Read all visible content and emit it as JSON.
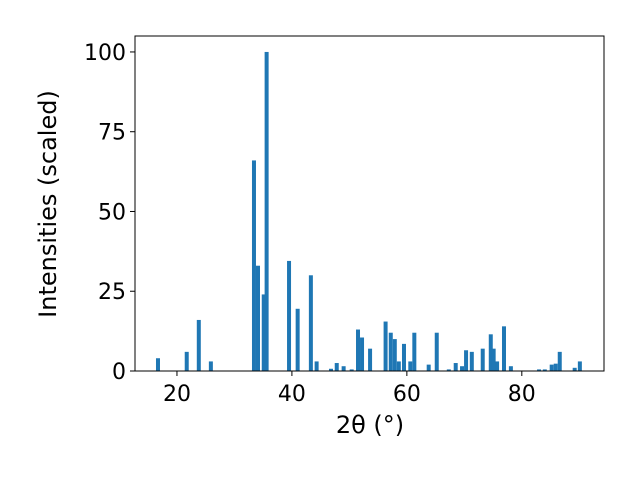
{
  "chart_data": {
    "type": "bar",
    "xlabel": "2θ (°)",
    "ylabel": "Intensities (scaled)",
    "color": "#1f77b4",
    "x": [
      16.7,
      21.7,
      23.8,
      25.9,
      33.4,
      34.1,
      35.1,
      35.6,
      39.5,
      41.0,
      43.3,
      44.3,
      46.8,
      47.8,
      49.0,
      50.4,
      51.5,
      52.2,
      53.6,
      56.3,
      57.2,
      57.9,
      58.6,
      59.5,
      60.6,
      61.3,
      63.8,
      65.2,
      67.3,
      68.5,
      69.6,
      70.3,
      71.3,
      73.2,
      74.6,
      75.1,
      75.7,
      76.9,
      78.1,
      83.0,
      84.0,
      85.2,
      85.9,
      86.6,
      89.2,
      90.1
    ],
    "values": [
      4,
      6,
      16,
      3,
      66,
      33,
      24,
      100,
      34.5,
      19.5,
      30,
      3,
      0.7,
      2.5,
      1.5,
      0.5,
      13,
      10.5,
      7,
      15.5,
      12,
      10,
      3,
      8.5,
      3,
      12,
      2,
      12,
      0.5,
      2.5,
      1.5,
      6.5,
      6,
      7,
      11.5,
      7,
      3,
      14,
      1.5,
      0.5,
      0.5,
      2,
      2.3,
      6,
      1,
      3
    ],
    "xlim": [
      12.7,
      94.3
    ],
    "ylim": [
      0,
      105
    ],
    "xticks": [
      20,
      40,
      60,
      80
    ],
    "yticks": [
      0,
      25,
      50,
      75,
      100
    ],
    "grid": false
  }
}
